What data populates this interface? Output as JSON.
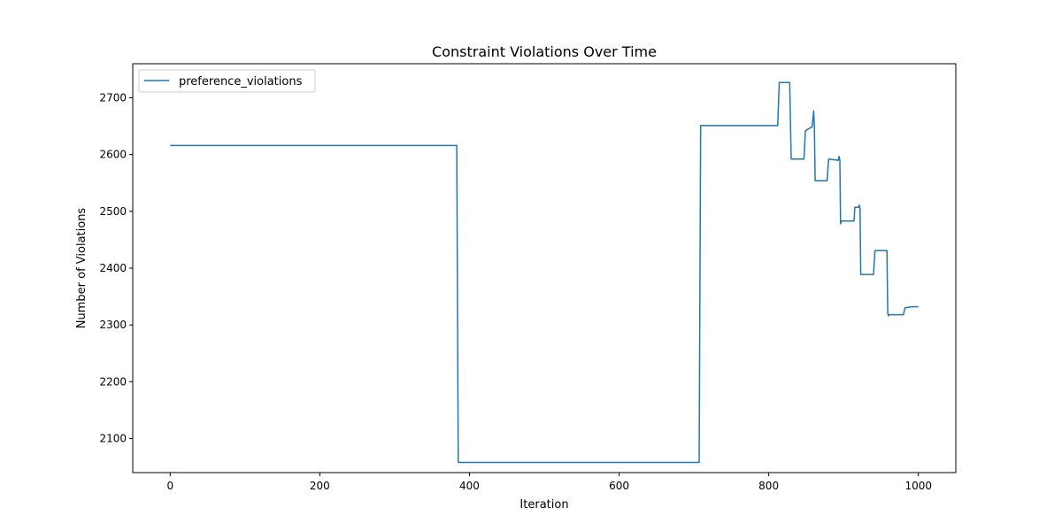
{
  "chart_data": {
    "type": "line",
    "title": "Constraint Violations Over Time",
    "xlabel": "Iteration",
    "ylabel": "Number of Violations",
    "xlim": [
      -50,
      1050
    ],
    "ylim": [
      2040,
      2760
    ],
    "xticks": [
      0,
      200,
      400,
      600,
      800,
      1000
    ],
    "yticks": [
      2100,
      2200,
      2300,
      2400,
      2500,
      2600,
      2700
    ],
    "grid": false,
    "legend_position": "top-left",
    "series": [
      {
        "name": "preference_violations",
        "color": "#1f77b4",
        "x": [
          0,
          383,
          385,
          707,
          709,
          812,
          814,
          828,
          830,
          847,
          849,
          858,
          860,
          861,
          862,
          878,
          880,
          893,
          894,
          895,
          896,
          897,
          914,
          915,
          920,
          921,
          922,
          923,
          940,
          942,
          958,
          959,
          960,
          961,
          980,
          982,
          990,
          1000
        ],
        "y": [
          2616,
          2616,
          2058,
          2058,
          2651,
          2651,
          2727,
          2727,
          2592,
          2592,
          2642,
          2649,
          2677,
          2649,
          2554,
          2554,
          2592,
          2590,
          2597,
          2590,
          2478,
          2483,
          2483,
          2507,
          2507,
          2511,
          2506,
          2389,
          2389,
          2431,
          2431,
          2321,
          2316,
          2318,
          2318,
          2330,
          2332,
          2332
        ]
      }
    ]
  }
}
